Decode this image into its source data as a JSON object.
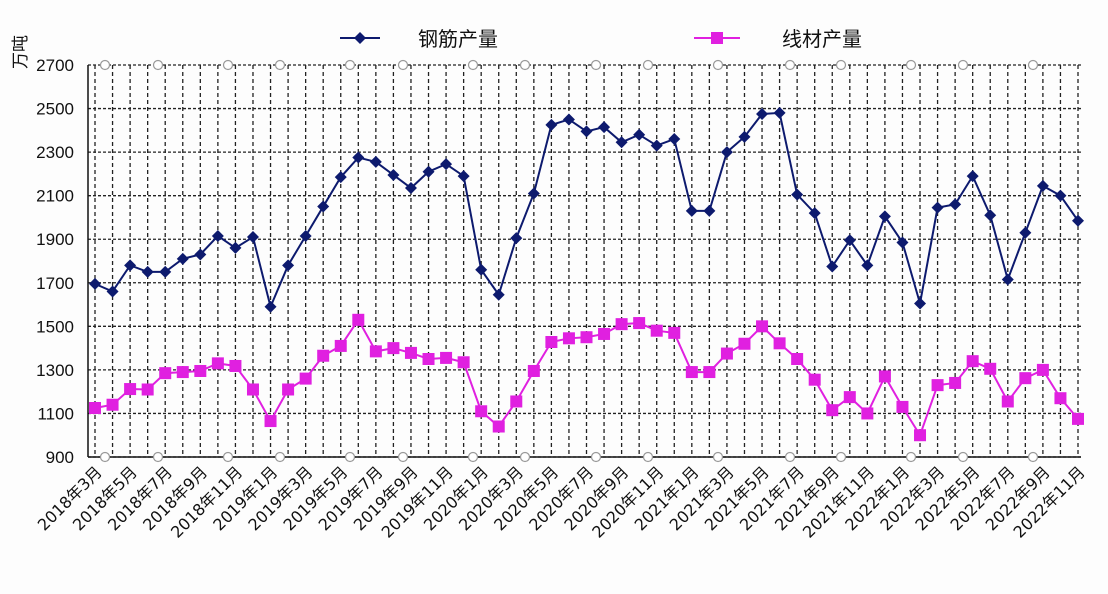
{
  "chart_data": {
    "type": "line",
    "ylabel": "万吨",
    "ylim": [
      900,
      2700
    ],
    "yticks": [
      900,
      1100,
      1300,
      1500,
      1700,
      1900,
      2100,
      2300,
      2500,
      2700
    ],
    "grid": true,
    "legend_position": "top",
    "x": [
      "2018-03",
      "2018-04",
      "2018-05",
      "2018-06",
      "2018-07",
      "2018-08",
      "2018-09",
      "2018-10",
      "2018-11",
      "2018-12",
      "2019-01",
      "2019-02",
      "2019-03",
      "2019-04",
      "2019-05",
      "2019-06",
      "2019-07",
      "2019-08",
      "2019-09",
      "2019-10",
      "2019-11",
      "2019-12",
      "2020-01",
      "2020-02",
      "2020-03",
      "2020-04",
      "2020-05",
      "2020-06",
      "2020-07",
      "2020-08",
      "2020-09",
      "2020-10",
      "2020-11",
      "2020-12",
      "2021-01",
      "2021-02",
      "2021-03",
      "2021-04",
      "2021-05",
      "2021-06",
      "2021-07",
      "2021-08",
      "2021-09",
      "2021-10",
      "2021-11",
      "2021-12",
      "2022-01",
      "2022-02",
      "2022-03",
      "2022-04",
      "2022-05",
      "2022-06",
      "2022-07",
      "2022-08",
      "2022-09",
      "2022-10",
      "2022-11"
    ],
    "xtick_labels": [
      "2018年3月",
      "2018年5月",
      "2018年7月",
      "2018年9月",
      "2018年11月",
      "2019年1月",
      "2019年3月",
      "2019年5月",
      "2019年7月",
      "2019年9月",
      "2019年11月",
      "2020年1月",
      "2020年3月",
      "2020年5月",
      "2020年7月",
      "2020年9月",
      "2020年11月",
      "2021年1月",
      "2021年3月",
      "2021年5月",
      "2021年7月",
      "2021年9月",
      "2021年11月",
      "2022年1月",
      "2022年3月",
      "2022年5月",
      "2022年7月",
      "2022年9月",
      "2022年11月"
    ],
    "series": [
      {
        "name": "钢筋产量",
        "color": "#0d1a6e",
        "marker": "diamond",
        "values": [
          1695,
          1660,
          1780,
          1750,
          1750,
          1810,
          1830,
          1915,
          1860,
          1910,
          1590,
          1780,
          1915,
          2050,
          2185,
          2275,
          2255,
          2195,
          2135,
          2210,
          2245,
          2190,
          1760,
          1645,
          1905,
          2110,
          2425,
          2450,
          2395,
          2415,
          2345,
          2380,
          2330,
          2360,
          2030,
          2030,
          2300,
          2370,
          2475,
          2480,
          2105,
          2020,
          1775,
          1895,
          1780,
          2005,
          1885,
          1605,
          2045,
          2060,
          2190,
          2010,
          1715,
          1930,
          2145,
          2100,
          1985
        ]
      },
      {
        "name": "线材产量",
        "color": "#e020e0",
        "marker": "square",
        "values": [
          1125,
          1140,
          1212,
          1210,
          1285,
          1290,
          1295,
          1330,
          1318,
          1210,
          1065,
          1210,
          1260,
          1365,
          1410,
          1530,
          1385,
          1400,
          1378,
          1350,
          1355,
          1335,
          1110,
          1040,
          1155,
          1295,
          1428,
          1445,
          1450,
          1465,
          1510,
          1515,
          1480,
          1470,
          1290,
          1290,
          1375,
          1420,
          1500,
          1422,
          1350,
          1255,
          1115,
          1175,
          1100,
          1270,
          1130,
          1000,
          1230,
          1240,
          1340,
          1305,
          1155,
          1262,
          1300,
          1170,
          1075
        ]
      }
    ]
  }
}
